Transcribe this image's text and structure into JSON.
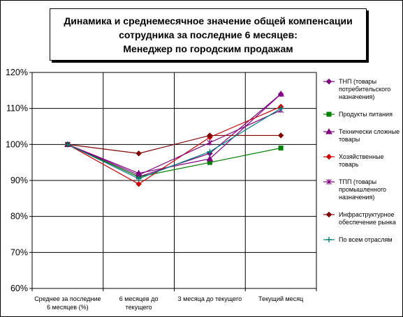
{
  "title_lines": [
    "Динамика и среднемесячное значение общей компенсации",
    "сотрудника за последние 6 месяцев:",
    "Менеджер по городским продажам"
  ],
  "chart_data": {
    "type": "line",
    "title": "Динамика и среднемесячное значение общей компенсации сотрудника за последние 6 месяцев: Менеджер по городским продажам",
    "categories": [
      [
        "Среднее за последние",
        "6 месяцев (%)"
      ],
      [
        "6 месяцев до",
        "текущего"
      ],
      [
        "3 месяца до текущего"
      ],
      [
        "Текущий месяц"
      ]
    ],
    "y_ticks": [
      "60%",
      "70%",
      "80%",
      "90%",
      "100%",
      "110%",
      "120%"
    ],
    "ylim": [
      60,
      120
    ],
    "grid": true,
    "legend_position": "right",
    "series": [
      {
        "name": "ТНП (товары потребительского назначения)",
        "legend_lines": [
          "ТНП (товары",
          "потребительского",
          "назначения)"
        ],
        "color": "#800080",
        "marker": "diamond",
        "values": [
          100,
          91,
          97.5,
          114
        ]
      },
      {
        "name": "Продукты питания",
        "legend_lines": [
          "Продукты питания"
        ],
        "color": "#008000",
        "marker": "square",
        "values": [
          100,
          91,
          95,
          99
        ]
      },
      {
        "name": "Технически сложные товары",
        "legend_lines": [
          "Технически сложные",
          "товары"
        ],
        "color": "#800080",
        "marker": "triangle",
        "values": [
          100,
          92,
          96,
          114
        ]
      },
      {
        "name": "Хозяйственные товарь",
        "legend_lines": [
          "Хозяйственные",
          "товарь"
        ],
        "color": "#CC0000",
        "marker": "diamond",
        "values": [
          100,
          89,
          102,
          110.5
        ]
      },
      {
        "name": "ТПП (товары промышленного назначения)",
        "legend_lines": [
          "ТПП (товары",
          "промышленного",
          "назначения)"
        ],
        "color": "#800080",
        "marker": "star",
        "values": [
          100,
          91.5,
          100.5,
          109.5
        ]
      },
      {
        "name": "Инфраструктурное обеспечение рынка",
        "legend_lines": [
          "Инфраструктурное",
          "обеспечение рынка"
        ],
        "color": "#800000",
        "marker": "diamond",
        "values": [
          100,
          97.5,
          102.5,
          102.5
        ]
      },
      {
        "name": "По всем отраслям",
        "legend_lines": [
          "По всем отраслям"
        ],
        "color": "#008080",
        "marker": "plus",
        "values": [
          100,
          90.5,
          98,
          110
        ]
      }
    ]
  }
}
